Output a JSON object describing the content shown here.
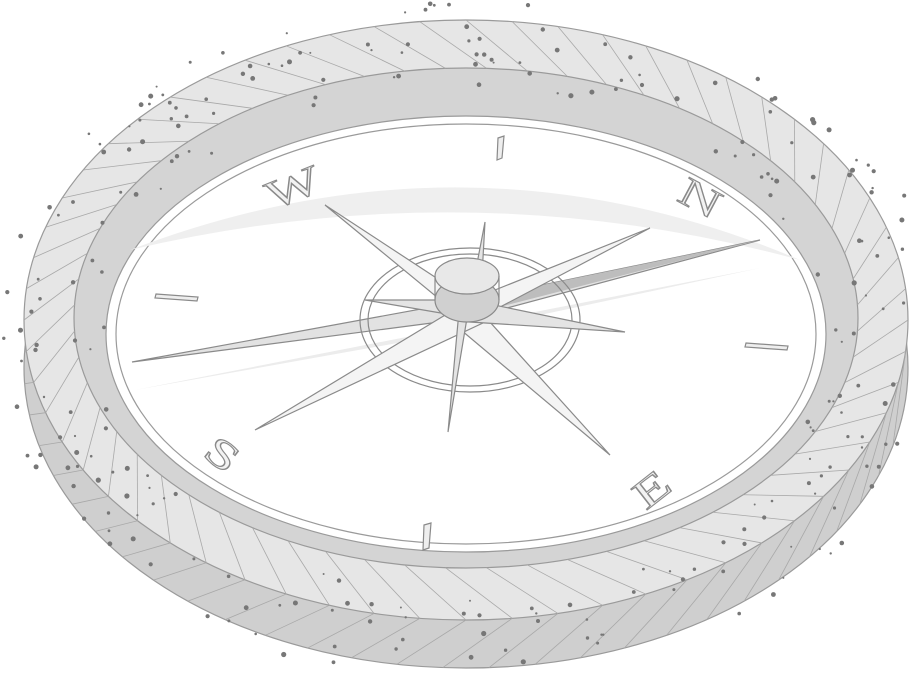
{
  "compass": {
    "directions": {
      "north": "N",
      "east": "E",
      "south": "S",
      "west": "W"
    }
  }
}
